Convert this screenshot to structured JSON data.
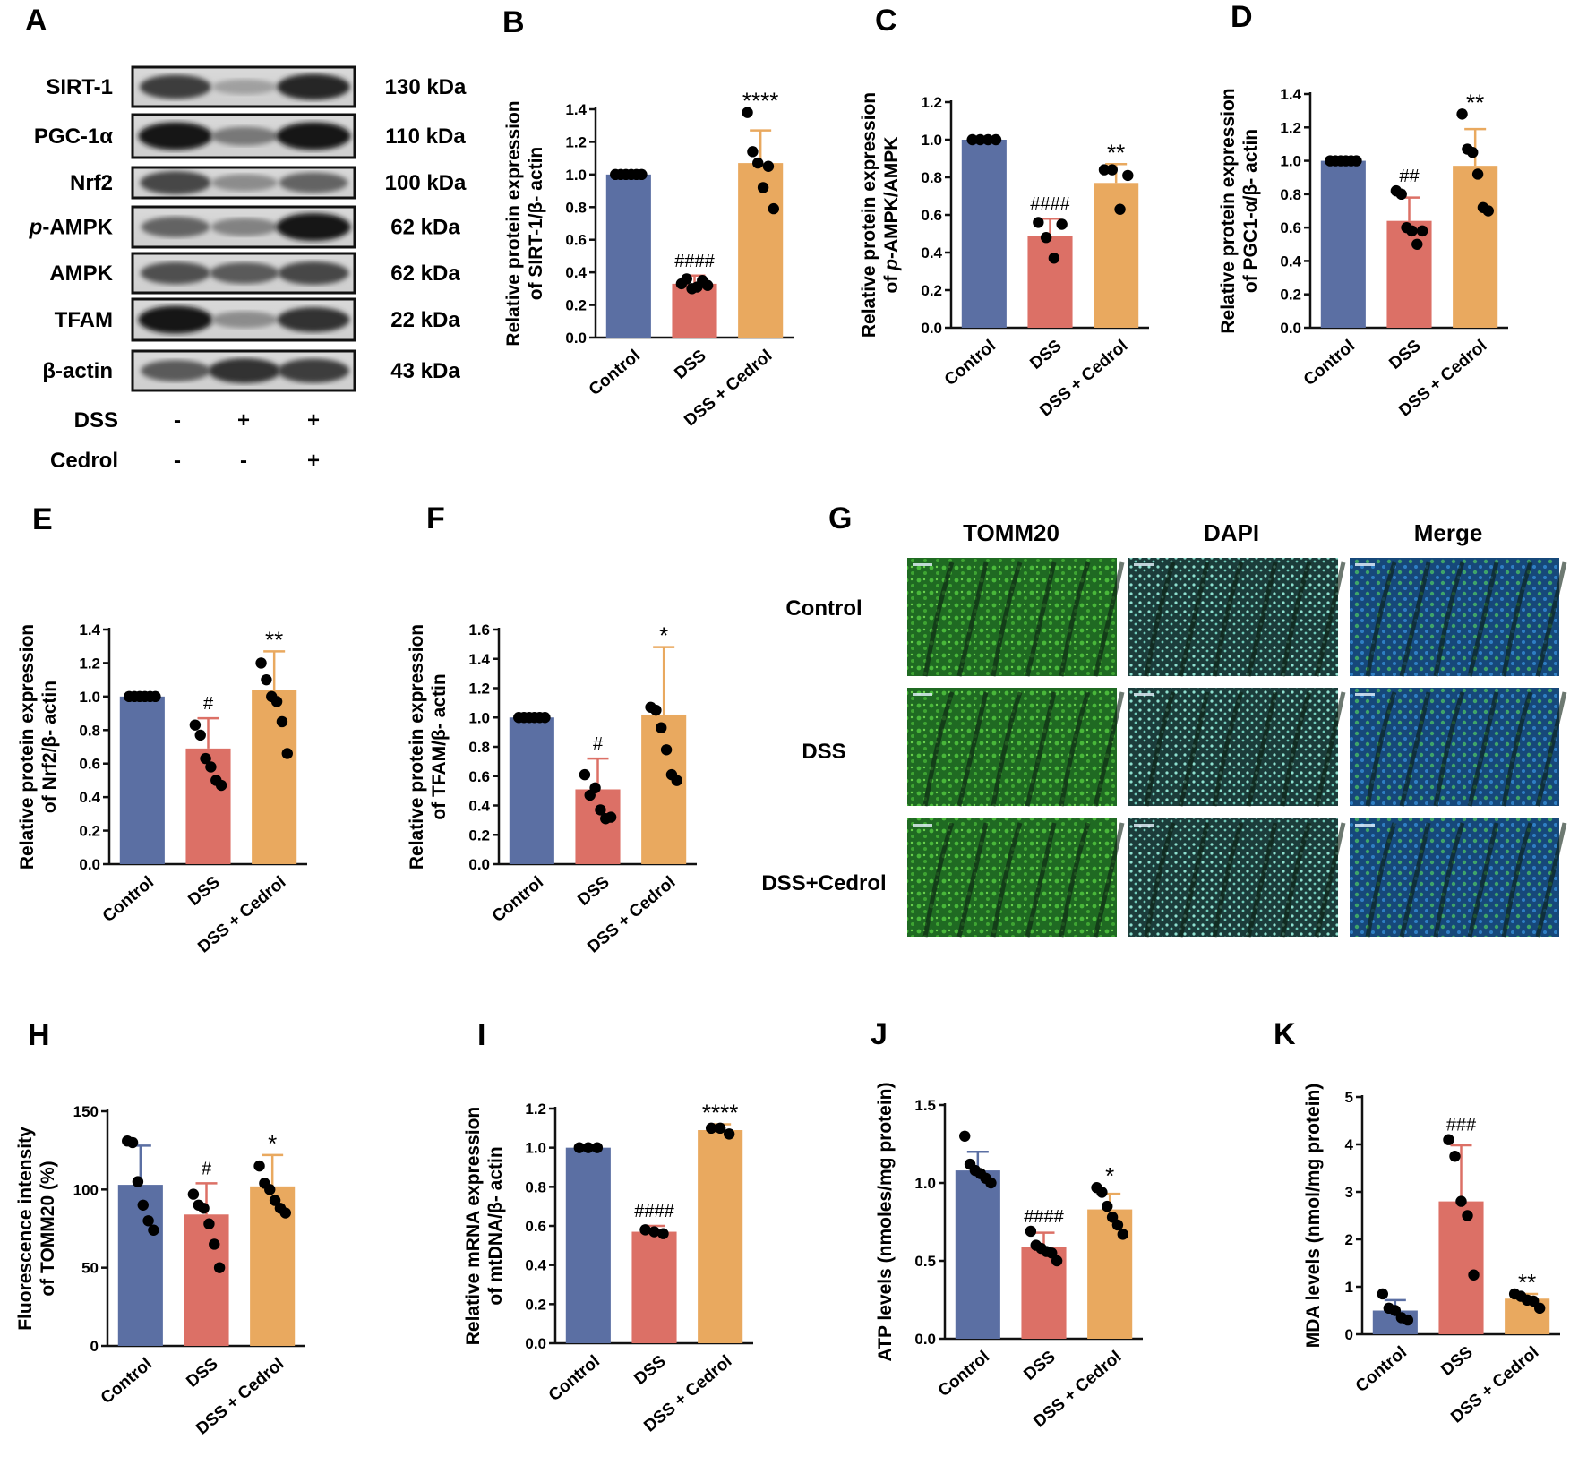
{
  "colors": {
    "control": "#5b6fa3",
    "dss": "#dc7066",
    "cedrol": "#e9a95f",
    "errControl": "#5b6fa3",
    "errDss": "#dc7066",
    "errCedrol": "#e9a95f"
  },
  "western_blot": {
    "letter": "A",
    "rows": [
      {
        "name": "SIRT-1",
        "kda": "130 kDa"
      },
      {
        "name": "PGC-1α",
        "kda": "110 kDa"
      },
      {
        "name": "Nrf2",
        "kda": "100 kDa"
      },
      {
        "name": "p-AMPK",
        "kda": "62 kDa"
      },
      {
        "name": "AMPK",
        "kda": "62 kDa"
      },
      {
        "name": "TFAM",
        "kda": "22 kDa"
      },
      {
        "name": "β-actin",
        "kda": "43 kDa"
      }
    ],
    "treatments": [
      {
        "name": "DSS",
        "signs": [
          "-",
          "+",
          "+"
        ]
      },
      {
        "name": "Cedrol",
        "signs": [
          "-",
          "-",
          "+"
        ]
      }
    ]
  },
  "microscopy": {
    "letter": "G",
    "columns": [
      "TOMM20",
      "DAPI",
      "Merge"
    ],
    "rows": [
      "Control",
      "DSS",
      "DSS+Cedrol"
    ]
  },
  "chart_data": [
    {
      "letter": "B",
      "type": "bar",
      "categories": [
        "Control",
        "DSS",
        "DSS + Cedrol"
      ],
      "values": [
        1.0,
        0.33,
        1.07
      ],
      "errors": [
        0.0,
        0.05,
        0.2
      ],
      "points": [
        [
          1.0,
          1.0,
          1.0,
          1.0,
          1.0,
          1.0
        ],
        [
          0.33,
          0.36,
          0.3,
          0.31,
          0.35,
          0.32
        ],
        [
          1.38,
          1.14,
          1.07,
          0.92,
          1.05,
          0.79
        ]
      ],
      "significance": [
        "",
        "####",
        "****"
      ],
      "ylabel": [
        "Relative  protein expression",
        "of SIRT-1/β- actin"
      ],
      "ylim": [
        0,
        1.4
      ],
      "yticks": [
        "0.0",
        "0.2",
        "0.4",
        "0.6",
        "0.8",
        "1.0",
        "1.2",
        "1.4"
      ]
    },
    {
      "letter": "C",
      "type": "bar",
      "categories": [
        "Control",
        "DSS",
        "DSS + Cedrol"
      ],
      "values": [
        1.0,
        0.49,
        0.77
      ],
      "errors": [
        0.0,
        0.09,
        0.1
      ],
      "points": [
        [
          1.0,
          1.0,
          1.0,
          1.0
        ],
        [
          0.56,
          0.48,
          0.37,
          0.55
        ],
        [
          0.84,
          0.84,
          0.63,
          0.81
        ]
      ],
      "significance": [
        "",
        "####",
        "**"
      ],
      "ylabel": [
        "Relative  protein expression",
        "of p-AMPK/AMPK"
      ],
      "ylim": [
        0,
        1.2
      ],
      "yticks": [
        "0.0",
        "0.2",
        "0.4",
        "0.6",
        "0.8",
        "1.0",
        "1.2"
      ]
    },
    {
      "letter": "D",
      "type": "bar",
      "categories": [
        "Control",
        "DSS",
        "DSS + Cedrol"
      ],
      "values": [
        1.0,
        0.64,
        0.97
      ],
      "errors": [
        0.0,
        0.14,
        0.22
      ],
      "points": [
        [
          1.0,
          1.0,
          1.0,
          1.0,
          1.0,
          1.0
        ],
        [
          0.82,
          0.8,
          0.6,
          0.58,
          0.5,
          0.58
        ],
        [
          1.28,
          1.07,
          1.05,
          0.92,
          0.72,
          0.7
        ]
      ],
      "significance": [
        "",
        "##",
        "**"
      ],
      "ylabel": [
        "Relative  protein expression",
        "of PGC1-α/β- actin"
      ],
      "ylim": [
        0,
        1.4
      ],
      "yticks": [
        "0.0",
        "0.2",
        "0.4",
        "0.6",
        "0.8",
        "1.0",
        "1.2",
        "1.4"
      ]
    },
    {
      "letter": "E",
      "type": "bar",
      "categories": [
        "Control",
        "DSS",
        "DSS + Cedrol"
      ],
      "values": [
        1.0,
        0.69,
        1.04
      ],
      "errors": [
        0.0,
        0.18,
        0.23
      ],
      "points": [
        [
          1.0,
          1.0,
          1.0,
          1.0,
          1.0,
          1.0
        ],
        [
          0.83,
          0.77,
          0.63,
          0.58,
          0.5,
          0.47
        ],
        [
          1.2,
          1.1,
          1.0,
          0.97,
          0.85,
          0.66
        ]
      ],
      "significance": [
        "",
        "#",
        "**"
      ],
      "ylabel": [
        "Relative  protein expression",
        "of Nrf2/β- actin"
      ],
      "ylim": [
        0,
        1.4
      ],
      "yticks": [
        "0.0",
        "0.2",
        "0.4",
        "0.6",
        "0.8",
        "1.0",
        "1.2",
        "1.4"
      ]
    },
    {
      "letter": "F",
      "type": "bar",
      "categories": [
        "Control",
        "DSS",
        "DSS + Cedrol"
      ],
      "values": [
        1.0,
        0.51,
        1.02
      ],
      "errors": [
        0.0,
        0.21,
        0.46
      ],
      "points": [
        [
          1.0,
          1.0,
          1.0,
          1.0,
          1.0,
          1.0
        ],
        [
          0.61,
          0.47,
          0.52,
          0.37,
          0.31,
          0.32
        ],
        [
          1.07,
          1.05,
          0.93,
          0.78,
          0.61,
          0.57
        ]
      ],
      "significance": [
        "",
        "#",
        "*"
      ],
      "ylabel": [
        "Relative  protein expression",
        "of TFAM/β- actin"
      ],
      "ylim": [
        0,
        1.6
      ],
      "yticks": [
        "0.0",
        "0.2",
        "0.4",
        "0.6",
        "0.8",
        "1.0",
        "1.2",
        "1.4",
        "1.6"
      ]
    },
    {
      "letter": "H",
      "type": "bar",
      "categories": [
        "Control",
        "DSS",
        "DSS + Cedrol"
      ],
      "values": [
        103,
        84,
        102
      ],
      "errors": [
        25,
        20,
        20
      ],
      "points": [
        [
          131,
          130,
          105,
          90,
          80,
          74
        ],
        [
          97,
          90,
          88,
          78,
          65,
          50
        ],
        [
          115,
          104,
          100,
          93,
          88,
          85
        ]
      ],
      "significance": [
        "",
        "#",
        "*"
      ],
      "ylabel": [
        "Fluorescence intensity",
        "of TOMM20 (%)"
      ],
      "ylim": [
        0,
        150
      ],
      "yticks": [
        "0",
        "50",
        "100",
        "150"
      ]
    },
    {
      "letter": "I",
      "type": "bar",
      "categories": [
        "Control",
        "DSS",
        "DSS + Cedrol"
      ],
      "values": [
        1.0,
        0.57,
        1.09
      ],
      "errors": [
        0.0,
        0.03,
        0.03
      ],
      "points": [
        [
          1.0,
          1.0,
          1.0
        ],
        [
          0.58,
          0.57,
          0.56
        ],
        [
          1.1,
          1.1,
          1.07
        ]
      ],
      "significance": [
        "",
        "####",
        "****"
      ],
      "ylabel": [
        "Relative  mRNA expression",
        "of mtDNA/β- actin"
      ],
      "ylim": [
        0,
        1.2
      ],
      "yticks": [
        "0.0",
        "0.2",
        "0.4",
        "0.6",
        "0.8",
        "1.0",
        "1.2"
      ]
    },
    {
      "letter": "J",
      "type": "bar",
      "categories": [
        "Control",
        "DSS",
        "DSS + Cedrol"
      ],
      "values": [
        1.08,
        0.59,
        0.83
      ],
      "errors": [
        0.12,
        0.09,
        0.1
      ],
      "points": [
        [
          1.3,
          1.12,
          1.08,
          1.06,
          1.03,
          1.0
        ],
        [
          0.69,
          0.6,
          0.58,
          0.56,
          0.55,
          0.5
        ],
        [
          0.97,
          0.94,
          0.85,
          0.78,
          0.73,
          0.67
        ]
      ],
      "significance": [
        "",
        "####",
        "*"
      ],
      "ylabel": [
        "ATP levels (nmoles/mg protein)"
      ],
      "ylim": [
        0,
        1.5
      ],
      "yticks": [
        "0.0",
        "0.5",
        "1.0",
        "1.5"
      ]
    },
    {
      "letter": "K",
      "type": "bar",
      "categories": [
        "Control",
        "DSS",
        "DSS + Cedrol"
      ],
      "values": [
        0.5,
        2.8,
        0.75
      ],
      "errors": [
        0.22,
        1.18,
        0.1
      ],
      "points": [
        [
          0.85,
          0.55,
          0.5,
          0.35,
          0.3
        ],
        [
          4.1,
          3.75,
          2.8,
          2.5,
          1.25
        ],
        [
          0.85,
          0.8,
          0.72,
          0.7,
          0.55
        ]
      ],
      "significance": [
        "",
        "###",
        "**"
      ],
      "ylabel": [
        "MDA levels (nmol/mg protein)"
      ],
      "ylim": [
        0,
        5
      ],
      "yticks": [
        "0",
        "1",
        "2",
        "3",
        "4",
        "5"
      ]
    }
  ]
}
